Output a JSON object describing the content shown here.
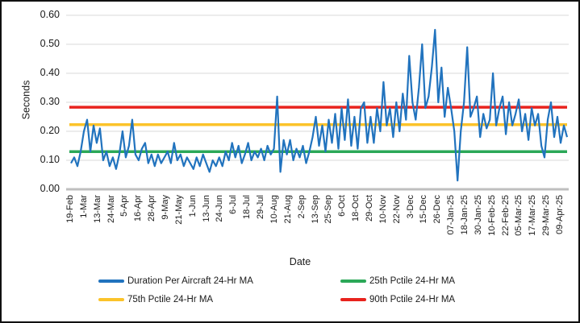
{
  "chart_data": {
    "type": "line",
    "title": "",
    "xlabel": "Date",
    "ylabel": "Seconds",
    "ylim": [
      0,
      0.6
    ],
    "grid": true,
    "legend_position": "bottom",
    "y_ticks": [
      "0.00",
      "0.10",
      "0.20",
      "0.30",
      "0.40",
      "0.50",
      "0.60"
    ],
    "x_categories": [
      "19-Feb",
      "1-Mar",
      "13-Mar",
      "24-Mar",
      "5-Apr",
      "16-Apr",
      "28-Apr",
      "9-May",
      "21-May",
      "1-Jun",
      "13-Jun",
      "24-Jun",
      "6-Jul",
      "18-Jul",
      "29-Jul",
      "10-Aug",
      "21-Aug",
      "2-Sep",
      "13-Sep",
      "25-Sep",
      "6-Oct",
      "18-Oct",
      "29-Oct",
      "10-Nov",
      "22-Nov",
      "3-Dec",
      "15-Dec",
      "26-Dec",
      "07-Jan-25",
      "18-Jan-25",
      "30-Jan-25",
      "10-Feb-25",
      "22-Feb-25",
      "05-Mar-25",
      "17-Mar-25",
      "29-Mar-25",
      "09-Apr-25"
    ],
    "series": [
      {
        "name": "Duration Per Aircraft 24-Hr MA",
        "color": "#2173BE",
        "values": [
          0.09,
          0.11,
          0.08,
          0.13,
          0.2,
          0.24,
          0.13,
          0.22,
          0.16,
          0.21,
          0.1,
          0.13,
          0.08,
          0.11,
          0.07,
          0.12,
          0.2,
          0.11,
          0.15,
          0.24,
          0.12,
          0.1,
          0.14,
          0.16,
          0.09,
          0.12,
          0.08,
          0.12,
          0.09,
          0.11,
          0.13,
          0.09,
          0.16,
          0.1,
          0.12,
          0.08,
          0.11,
          0.09,
          0.07,
          0.11,
          0.08,
          0.12,
          0.09,
          0.06,
          0.1,
          0.08,
          0.11,
          0.08,
          0.13,
          0.1,
          0.16,
          0.11,
          0.15,
          0.09,
          0.12,
          0.16,
          0.1,
          0.13,
          0.11,
          0.14,
          0.1,
          0.15,
          0.12,
          0.14,
          0.32,
          0.06,
          0.17,
          0.12,
          0.17,
          0.1,
          0.14,
          0.11,
          0.15,
          0.09,
          0.13,
          0.18,
          0.25,
          0.15,
          0.22,
          0.13,
          0.24,
          0.16,
          0.26,
          0.14,
          0.28,
          0.17,
          0.31,
          0.15,
          0.25,
          0.14,
          0.28,
          0.3,
          0.16,
          0.25,
          0.16,
          0.28,
          0.2,
          0.37,
          0.22,
          0.28,
          0.18,
          0.3,
          0.2,
          0.33,
          0.24,
          0.46,
          0.3,
          0.24,
          0.35,
          0.5,
          0.28,
          0.32,
          0.42,
          0.55,
          0.3,
          0.42,
          0.25,
          0.35,
          0.28,
          0.2,
          0.03,
          0.2,
          0.3,
          0.49,
          0.25,
          0.28,
          0.32,
          0.18,
          0.26,
          0.21,
          0.24,
          0.4,
          0.22,
          0.28,
          0.32,
          0.19,
          0.3,
          0.22,
          0.26,
          0.31,
          0.2,
          0.26,
          0.17,
          0.28,
          0.22,
          0.26,
          0.15,
          0.11,
          0.24,
          0.3,
          0.18,
          0.25,
          0.16,
          0.22,
          0.18
        ]
      }
    ],
    "ref_lines": [
      {
        "name": "25th Pctile 24-Hr MA",
        "value": 0.13,
        "color": "#2BA858"
      },
      {
        "name": "75th Pctile 24-Hr MA",
        "value": 0.223,
        "color": "#FBC32A"
      },
      {
        "name": "90th Pctile 24-Hr MA",
        "value": 0.283,
        "color": "#E8231D"
      }
    ],
    "legend": [
      {
        "label": "Duration Per Aircraft 24-Hr MA",
        "color": "#2173BE"
      },
      {
        "label": "25th Pctile 24-Hr MA",
        "color": "#2BA858"
      },
      {
        "label": "75th Pctile 24-Hr MA",
        "color": "#FBC32A"
      },
      {
        "label": "90th Pctile 24-Hr MA",
        "color": "#E8231D"
      }
    ],
    "colors": {
      "gridline": "#D9D9D9",
      "zero_axis": "#BFBFBF",
      "text": "#1A1A1A",
      "background": "#FFFFFF",
      "frame_border": "#111111"
    }
  }
}
